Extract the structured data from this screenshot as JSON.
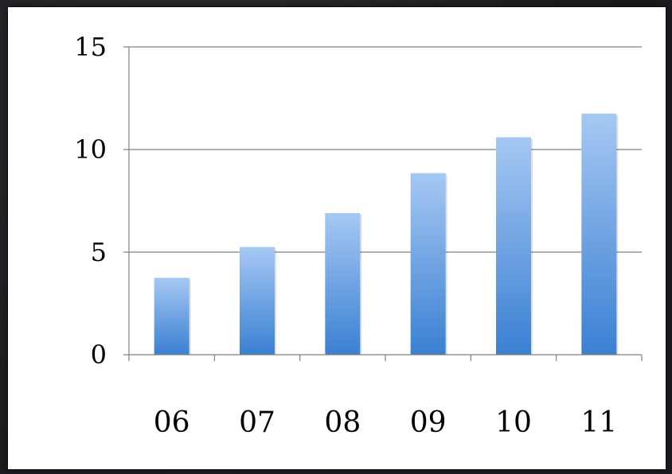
{
  "chart_data": {
    "type": "bar",
    "categories": [
      "06",
      "07",
      "08",
      "09",
      "10",
      "11"
    ],
    "values": [
      3.75,
      5.25,
      6.9,
      8.85,
      10.6,
      11.75
    ],
    "title": "",
    "xlabel": "",
    "ylabel": "",
    "ylim": [
      0,
      15
    ],
    "yticks": [
      "0",
      "5",
      "10",
      "15"
    ],
    "grid": true,
    "legend": "none",
    "colors": {
      "bar_top": "#a6c8f3",
      "bar_bottom": "#3a80d2",
      "grid": "#808080",
      "axis": "#808080"
    }
  }
}
